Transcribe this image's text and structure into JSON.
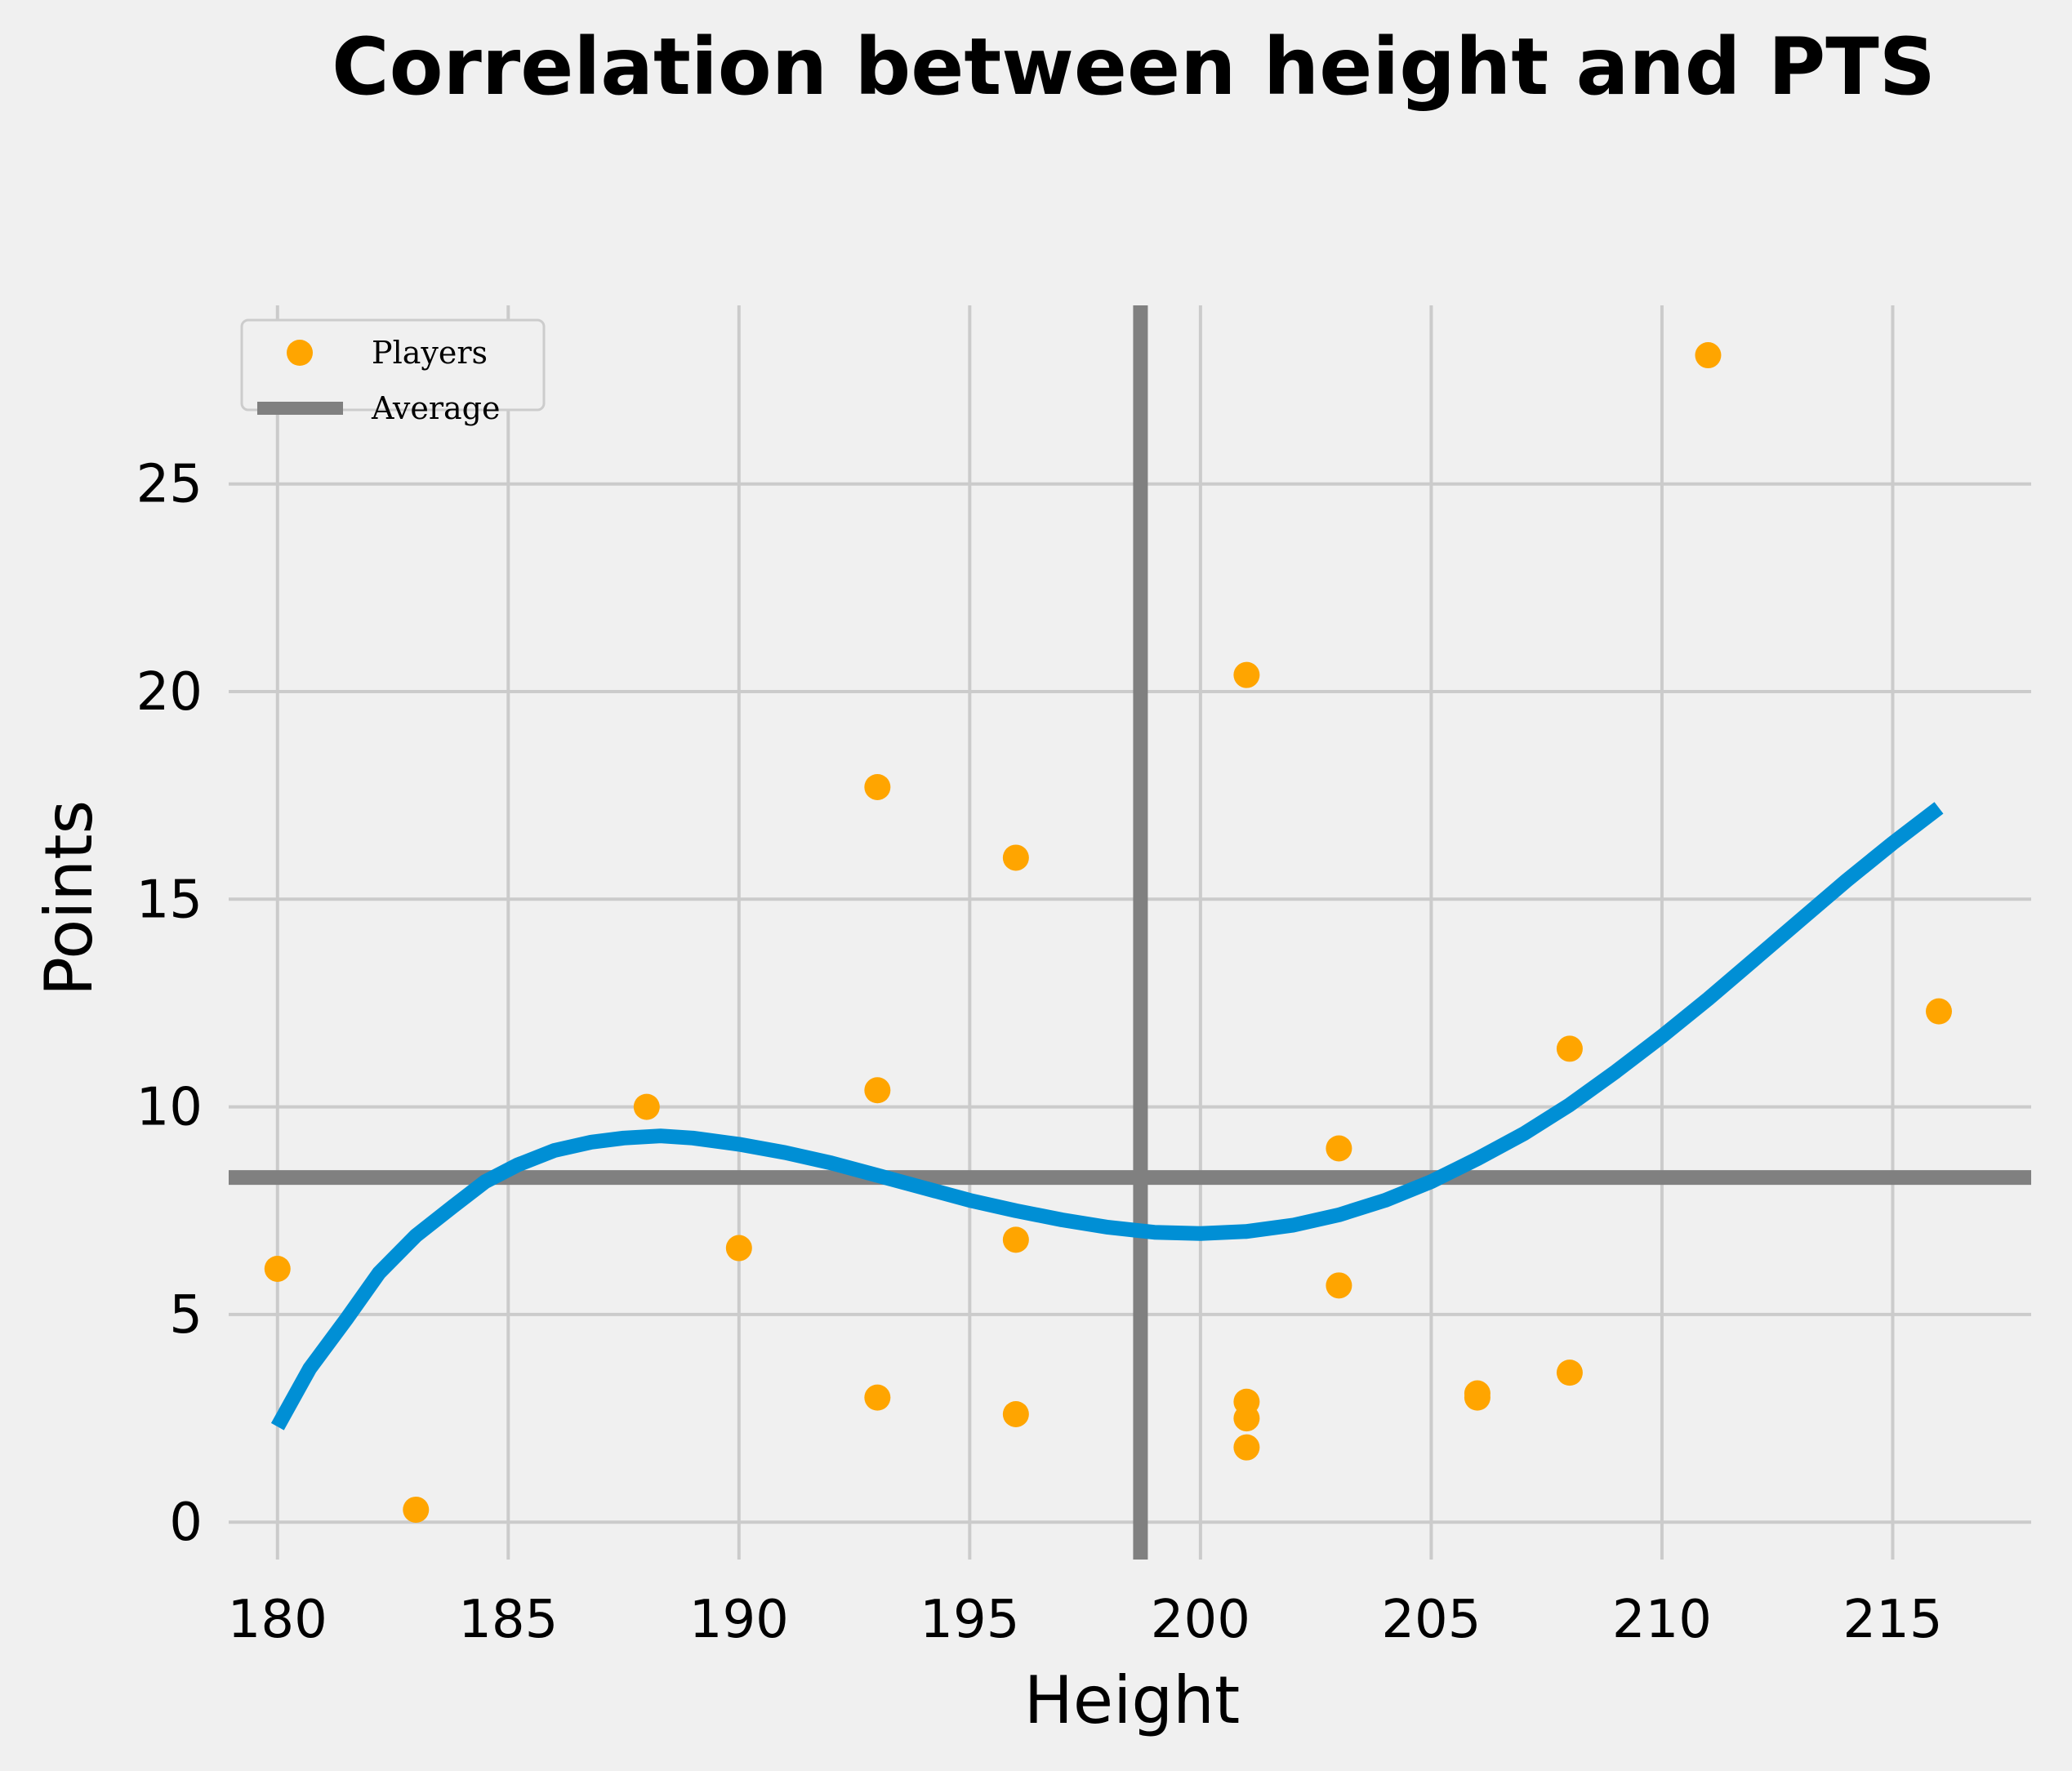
{
  "chart_data": {
    "type": "scatter",
    "title": "Correlation between height and PTS",
    "xlabel": "Height",
    "ylabel": "Points",
    "xlim": [
      178.5,
      218
    ],
    "ylim": [
      -0.9,
      29.3
    ],
    "xticks": [
      180,
      185,
      190,
      195,
      200,
      205,
      210,
      215
    ],
    "yticks": [
      0,
      5,
      10,
      15,
      20,
      25
    ],
    "grid": true,
    "legend_position": "top-left",
    "series": [
      {
        "name": "Players",
        "kind": "scatter",
        "color": "#ffa500",
        "points": [
          [
            180,
            6.1
          ],
          [
            183,
            0.3
          ],
          [
            188,
            10.0
          ],
          [
            190,
            6.6
          ],
          [
            193,
            17.7
          ],
          [
            193,
            10.4
          ],
          [
            193,
            3.0
          ],
          [
            196,
            16.0
          ],
          [
            196,
            6.8
          ],
          [
            196,
            2.6
          ],
          [
            201,
            20.4
          ],
          [
            201,
            2.9
          ],
          [
            201,
            2.5
          ],
          [
            201,
            1.8
          ],
          [
            203,
            9.0
          ],
          [
            203,
            5.7
          ],
          [
            206,
            3.1
          ],
          [
            206,
            3.0
          ],
          [
            208,
            11.4
          ],
          [
            208,
            3.6
          ],
          [
            211,
            28.1
          ],
          [
            216,
            12.3
          ]
        ]
      },
      {
        "name": "Average",
        "kind": "reference-lines",
        "color": "#808080",
        "x_average": 198.7,
        "y_average": 8.3
      },
      {
        "kind": "line",
        "color": "#008fd5",
        "points": [
          [
            180,
            2.3
          ],
          [
            180.7,
            3.7
          ],
          [
            181.5,
            4.9
          ],
          [
            182.2,
            6.0
          ],
          [
            183,
            6.9
          ],
          [
            183.8,
            7.6
          ],
          [
            184.5,
            8.2
          ],
          [
            185.2,
            8.6
          ],
          [
            186,
            8.95
          ],
          [
            186.8,
            9.15
          ],
          [
            187.5,
            9.25
          ],
          [
            188.3,
            9.3
          ],
          [
            189,
            9.25
          ],
          [
            190,
            9.1
          ],
          [
            191,
            8.9
          ],
          [
            192,
            8.65
          ],
          [
            193,
            8.35
          ],
          [
            194,
            8.05
          ],
          [
            195,
            7.75
          ],
          [
            196,
            7.5
          ],
          [
            197,
            7.28
          ],
          [
            198,
            7.1
          ],
          [
            199,
            6.98
          ],
          [
            200,
            6.95
          ],
          [
            201,
            7.0
          ],
          [
            202,
            7.15
          ],
          [
            203,
            7.4
          ],
          [
            204,
            7.75
          ],
          [
            205,
            8.2
          ],
          [
            206,
            8.75
          ],
          [
            207,
            9.35
          ],
          [
            208,
            10.05
          ],
          [
            209,
            10.85
          ],
          [
            210,
            11.7
          ],
          [
            211,
            12.6
          ],
          [
            212,
            13.55
          ],
          [
            213,
            14.5
          ],
          [
            214,
            15.45
          ],
          [
            215,
            16.35
          ],
          [
            216,
            17.2
          ]
        ]
      }
    ]
  }
}
